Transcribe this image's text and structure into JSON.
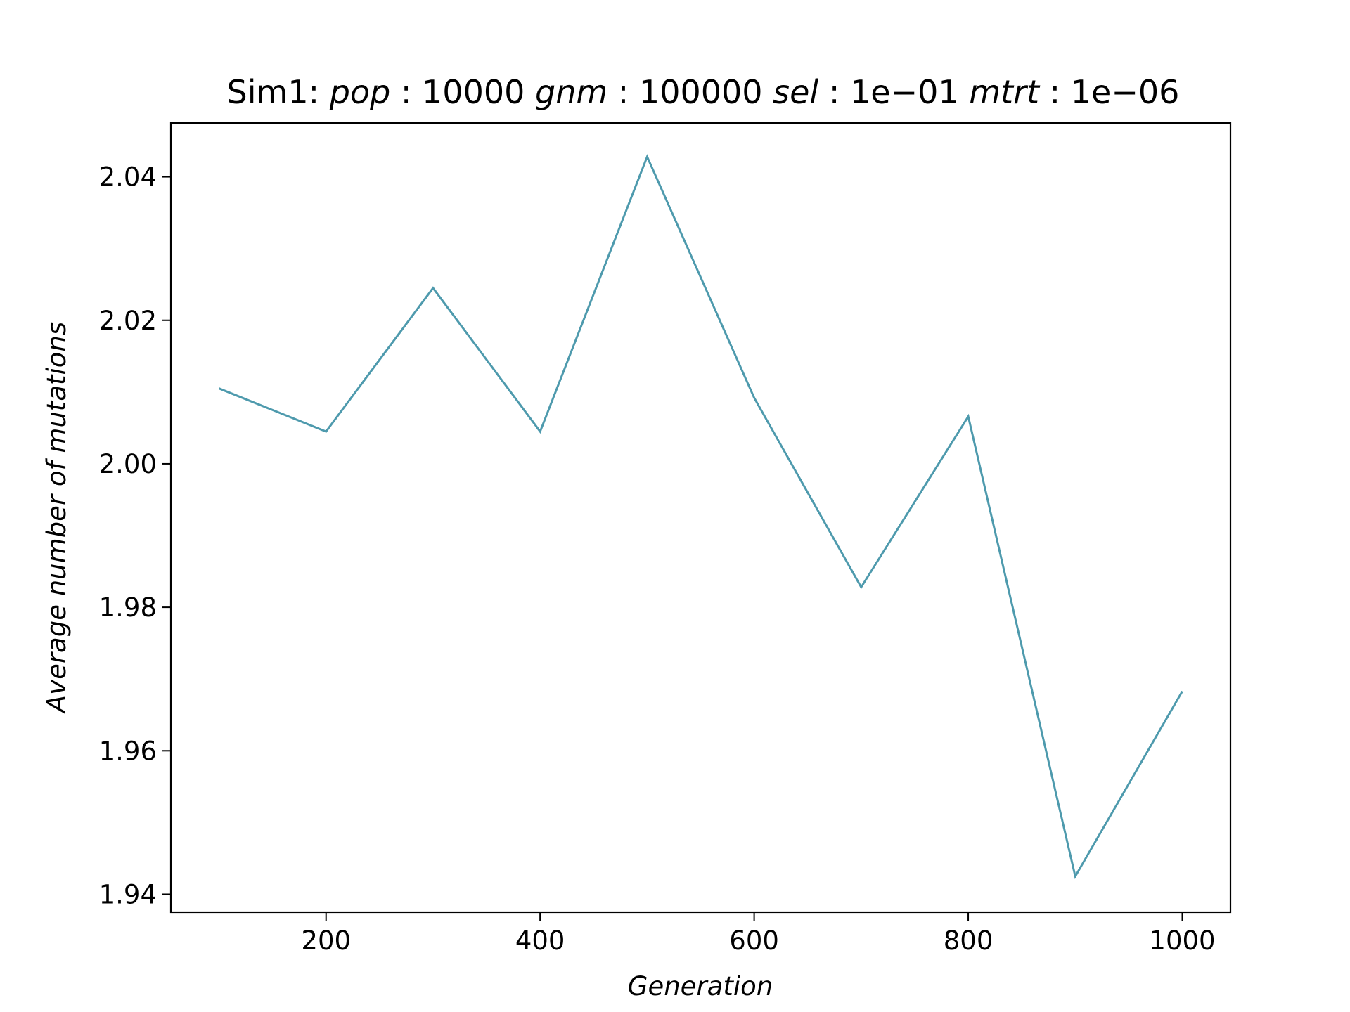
{
  "chart_data": {
    "type": "line",
    "title": {
      "prefix": "Sim1: ",
      "pop_key": "pop",
      "pop_val": "10000",
      "gnm_key": "gnm",
      "gnm_val": "100000",
      "sel_key": "sel",
      "sel_val": "1e−01",
      "mtrt_key": "mtrt",
      "mtrt_val": "1e−06"
    },
    "xlabel": "Generation",
    "ylabel": "Average number of mutations",
    "xlim": [
      55,
      1045
    ],
    "ylim": [
      1.9375,
      2.0475
    ],
    "xticks": [
      200,
      400,
      600,
      800,
      1000
    ],
    "xtick_labels": [
      "200",
      "400",
      "600",
      "800",
      "1000"
    ],
    "yticks": [
      1.94,
      1.96,
      1.98,
      2.0,
      2.02,
      2.04
    ],
    "ytick_labels": [
      "1.94",
      "1.96",
      "1.98",
      "2.00",
      "2.02",
      "2.04"
    ],
    "grid": false,
    "series": [
      {
        "color": "#4e9aad",
        "x": [
          100,
          200,
          300,
          400,
          500,
          600,
          700,
          800,
          900,
          1000
        ],
        "y": [
          2.0105,
          2.0045,
          2.0245,
          2.0045,
          2.0428,
          2.0092,
          1.9828,
          2.0066,
          1.9425,
          1.9683
        ]
      }
    ]
  }
}
